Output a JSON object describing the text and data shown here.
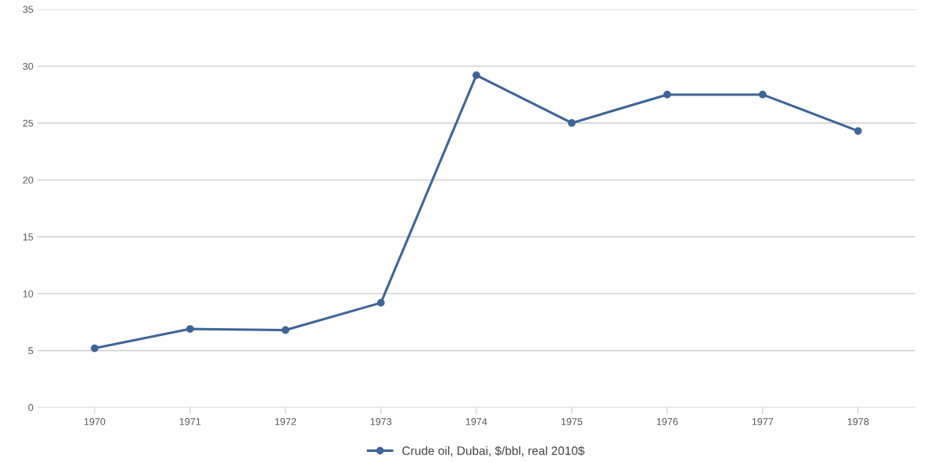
{
  "chart_data": {
    "type": "line",
    "categories": [
      "1970",
      "1971",
      "1972",
      "1973",
      "1974",
      "1975",
      "1976",
      "1977",
      "1978"
    ],
    "series": [
      {
        "name": "Crude oil, Dubai, $/bbl, real 2010$",
        "color": "#3d6599",
        "values": [
          5.2,
          6.9,
          6.8,
          9.2,
          29.2,
          25.0,
          27.5,
          27.5,
          24.3
        ]
      }
    ],
    "ylim": [
      0,
      35
    ],
    "yticks": [
      0,
      5,
      10,
      15,
      20,
      25,
      30,
      35
    ],
    "grid": "y",
    "legend": "bottom",
    "marker": "circle",
    "line_style": "solid"
  }
}
